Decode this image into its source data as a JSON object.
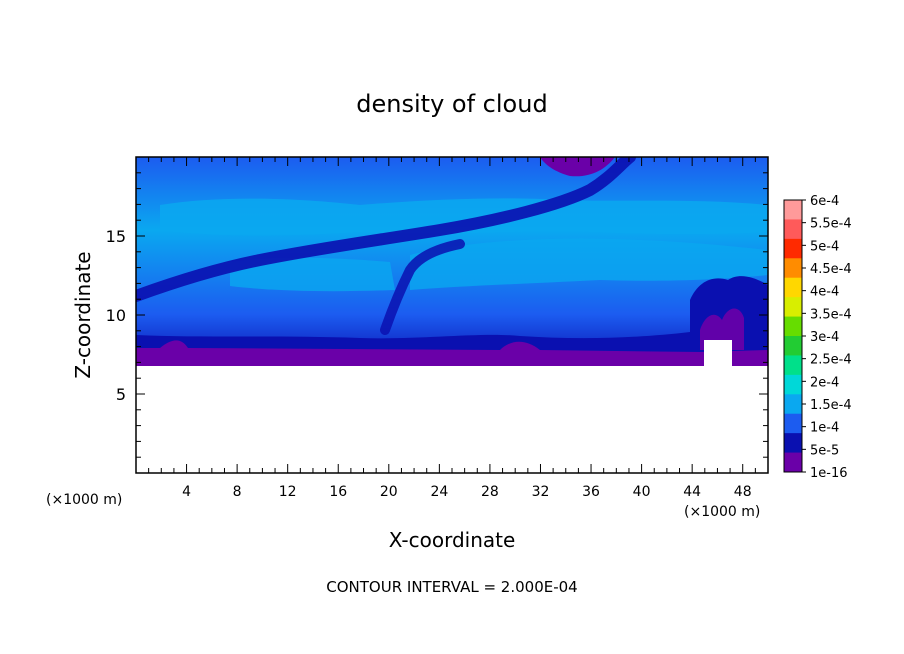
{
  "chart_data": {
    "type": "heatmap",
    "title": "density of cloud",
    "xlabel": "X-coordinate",
    "ylabel": "Z-coordinate",
    "x_unit_left": "(×1000 m)",
    "x_unit_right": "(×1000 m)",
    "footer": "CONTOUR INTERVAL = 2.000E-04",
    "xlim": [
      0,
      50
    ],
    "ylim": [
      0,
      20
    ],
    "x_ticks": [
      4,
      8,
      12,
      16,
      20,
      24,
      28,
      32,
      36,
      40,
      44,
      48
    ],
    "y_ticks": [
      5,
      10,
      15
    ],
    "colorbar": {
      "labels": [
        "6e-4",
        "5.5e-4",
        "5e-4",
        "4.5e-4",
        "4e-4",
        "3.5e-4",
        "3e-4",
        "2.5e-4",
        "2e-4",
        "1.5e-4",
        "1e-4",
        "5e-5",
        "1e-16"
      ],
      "colors": [
        "#ff9a9a",
        "#ff5a5a",
        "#ff2a00",
        "#ff8c00",
        "#ffd700",
        "#d8ee00",
        "#66dd00",
        "#22cc33",
        "#00e08a",
        "#00d8d8",
        "#0aa8f0",
        "#1c5cf0",
        "#0a10b0",
        "#6a00a8"
      ]
    },
    "fields": {
      "low_cloud_base_km": 7.0,
      "upper_band_core_km": 16.5,
      "dark_streak": [
        [
          0,
          11.2
        ],
        [
          6,
          12.5
        ],
        [
          12,
          13.7
        ],
        [
          20,
          14.6
        ],
        [
          28,
          15.6
        ],
        [
          32,
          16.5
        ],
        [
          36,
          18.5
        ],
        [
          38,
          20
        ]
      ]
    }
  }
}
